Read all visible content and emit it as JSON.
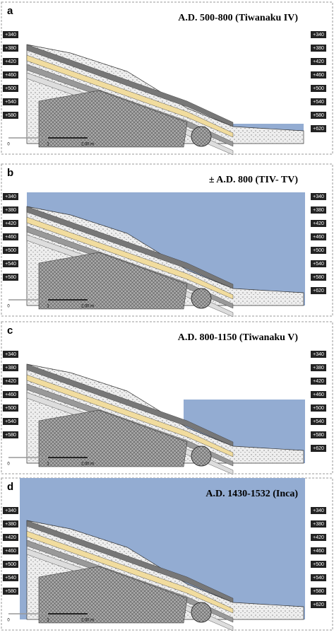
{
  "panels": [
    {
      "letter": "a",
      "title": "A.D. 500-800  (Tiwanaku IV)",
      "left_scale": [
        "+340",
        "+380",
        "+420",
        "+460",
        "+500",
        "+540",
        "+580"
      ],
      "right_scale": [
        "+340",
        "+380",
        "+420",
        "+460",
        "+500",
        "+540",
        "+580",
        "+620"
      ],
      "scale_bar": [
        "0",
        "1",
        "2,00 m"
      ]
    },
    {
      "letter": "b",
      "title": "± A.D. 800  (TIV- TV)",
      "left_scale": [
        "+340",
        "+380",
        "+420",
        "+460",
        "+500",
        "+540",
        "+580"
      ],
      "right_scale": [
        "+340",
        "+380",
        "+420",
        "+460",
        "+500",
        "+540",
        "+580",
        "+620"
      ],
      "scale_bar": [
        "0",
        "1",
        "2,00 m"
      ]
    },
    {
      "letter": "c",
      "title": "A.D. 800-1150  (Tiwanaku V)",
      "left_scale": [
        "+340",
        "+380",
        "+420",
        "+460",
        "+500",
        "+540",
        "+580"
      ],
      "right_scale": [
        "+340",
        "+380",
        "+420",
        "+460",
        "+500",
        "+540",
        "+580",
        "+620"
      ],
      "scale_bar": [
        "0",
        "1",
        "2,00 m"
      ]
    },
    {
      "letter": "d",
      "title": "A.D. 1430-1532  (Inca)",
      "left_scale": [
        "+340",
        "+380",
        "+420",
        "+460",
        "+500",
        "+540",
        "+580"
      ],
      "right_scale": [
        "+340",
        "+380",
        "+420",
        "+460",
        "+500",
        "+540",
        "+580",
        "+620"
      ],
      "scale_bar": [
        "0",
        "1",
        "2,00 m"
      ]
    }
  ]
}
